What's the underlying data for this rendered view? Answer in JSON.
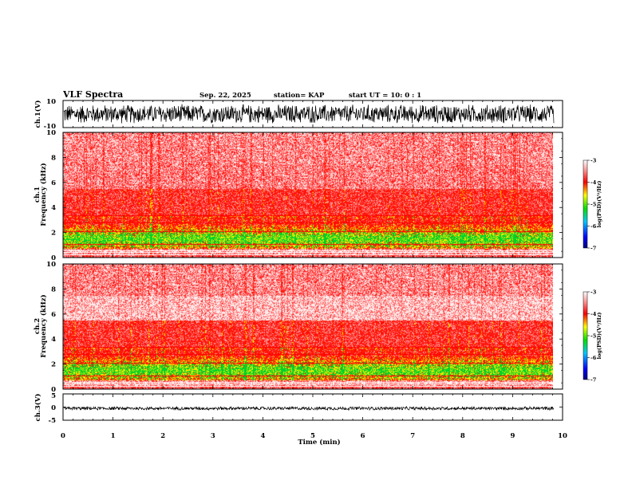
{
  "header": {
    "title": "VLF Spectra",
    "date": "Sep. 22, 2025",
    "station": "station= KAP",
    "start": "start UT =  10: 0 : 1"
  },
  "chart_data": [
    {
      "type": "line",
      "name": "ch1-waveform",
      "ylabel": "ch.1(V)",
      "ylim": [
        -10,
        10
      ],
      "yticks": [
        "10",
        "-10"
      ],
      "x_range_min": [
        0,
        9.83
      ]
    },
    {
      "type": "heatmap",
      "name": "ch1-spectrogram",
      "ylabel": "ch.1",
      "ylabel2": "Frequency (kHz)",
      "ylim": [
        0,
        10
      ],
      "yticks": [
        "0",
        "2",
        "4",
        "6",
        "8",
        "10"
      ],
      "colorbar": {
        "label": "log(PSD)(V²/Hz)",
        "range": [
          -7,
          -3
        ],
        "ticks": [
          "-3",
          "-4",
          "-5",
          "-6",
          "-7"
        ]
      }
    },
    {
      "type": "heatmap",
      "name": "ch2-spectrogram",
      "ylabel": "ch.2",
      "ylabel2": "Frequency (kHz)",
      "ylim": [
        0,
        10
      ],
      "yticks": [
        "0",
        "2",
        "4",
        "6",
        "8",
        "10"
      ],
      "colorbar": {
        "label": "log(PSD)(V²/Hz)",
        "range": [
          -7,
          -3
        ],
        "ticks": [
          "-3",
          "-4",
          "-5",
          "-6",
          "-7"
        ]
      }
    },
    {
      "type": "line",
      "name": "ch3-waveform",
      "ylabel": "ch.3(V)",
      "ylim": [
        -5,
        5
      ],
      "yticks": [
        "5",
        "0",
        "-5"
      ]
    }
  ],
  "xaxis": {
    "label": "Time (min)",
    "ticks": [
      "0",
      "1",
      "2",
      "3",
      "4",
      "5",
      "6",
      "7",
      "8",
      "9",
      "10"
    ],
    "range": [
      0,
      10
    ]
  }
}
